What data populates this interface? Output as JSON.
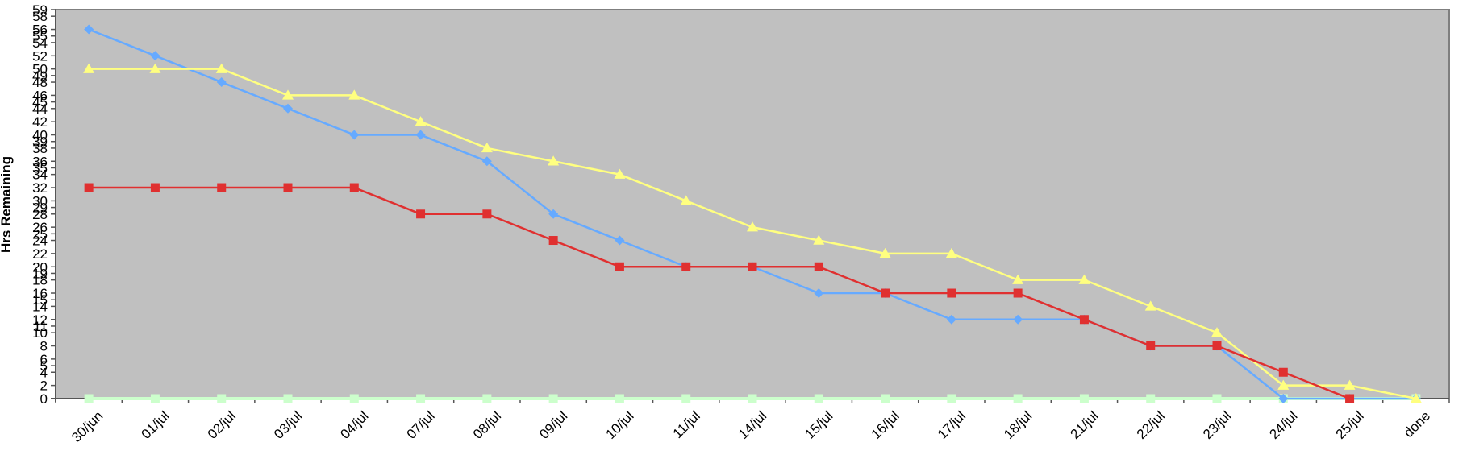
{
  "chart_data": {
    "type": "line",
    "title": "",
    "xlabel": "",
    "ylabel": "Hrs  Remaining",
    "ylim": [
      0,
      59
    ],
    "yticks": [
      0,
      2,
      4,
      5,
      6,
      8,
      10,
      11,
      12,
      14,
      15,
      16,
      18,
      19,
      20,
      22,
      24,
      25,
      26,
      28,
      29,
      30,
      32,
      34,
      35,
      36,
      38,
      39,
      40,
      42,
      44,
      45,
      46,
      48,
      49,
      50,
      52,
      54,
      55,
      56,
      58,
      59
    ],
    "categories": [
      "30/jun",
      "01/jul",
      "02/jul",
      "03/jul",
      "04/jul",
      "07/jul",
      "08/jul",
      "09/jul",
      "10/jul",
      "11/jul",
      "14/jul",
      "15/jul",
      "16/jul",
      "17/jul",
      "18/jul",
      "21/jul",
      "22/jul",
      "23/jul",
      "24/jul",
      "25/jul",
      "done"
    ],
    "grid": false,
    "legend": "none",
    "plot_background": "#c0c0c0",
    "series": [
      {
        "color": "#66aaff",
        "marker": "diamond",
        "values": [
          56,
          52,
          48,
          44,
          40,
          40,
          36,
          28,
          24,
          20,
          20,
          16,
          16,
          12,
          12,
          12,
          8,
          8,
          0,
          0,
          0
        ]
      },
      {
        "color": "#e03030",
        "marker": "square",
        "values": [
          32,
          32,
          32,
          32,
          32,
          28,
          28,
          24,
          20,
          20,
          20,
          20,
          16,
          16,
          16,
          12,
          8,
          8,
          4,
          0,
          null
        ]
      },
      {
        "color": "#ffff80",
        "marker": "triangle",
        "values": [
          50,
          50,
          50,
          46,
          46,
          42,
          38,
          36,
          34,
          30,
          26,
          24,
          22,
          22,
          18,
          18,
          14,
          10,
          2,
          2,
          0
        ]
      },
      {
        "color": "#ccffcc",
        "marker": "square",
        "values": [
          0,
          0,
          0,
          0,
          0,
          0,
          0,
          0,
          0,
          0,
          0,
          0,
          0,
          0,
          0,
          0,
          0,
          0,
          0,
          0,
          0
        ]
      }
    ]
  }
}
